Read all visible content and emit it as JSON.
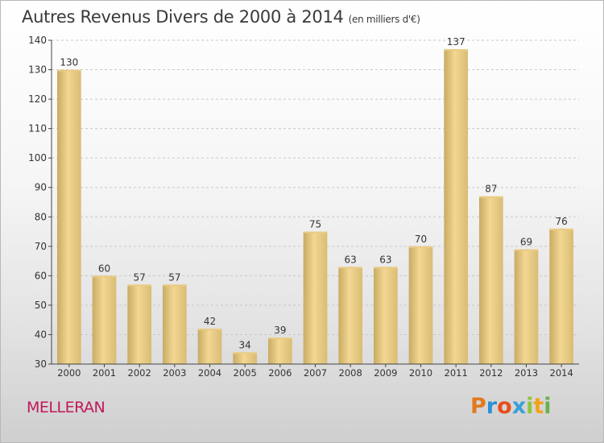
{
  "header": {
    "title": "Autres Revenus Divers de 2000 à 2014",
    "subtitle": "(en milliers d'€)"
  },
  "footer": {
    "town": "MELLERAN",
    "logo": [
      "P",
      "r",
      "o",
      "x",
      "i",
      "t",
      "i"
    ]
  },
  "chart_data": {
    "type": "bar",
    "title": "Autres Revenus Divers de 2000 à 2014",
    "subtitle": "(en milliers d'€)",
    "xlabel": "",
    "ylabel": "",
    "ylim": [
      30,
      140
    ],
    "yticks": [
      30,
      40,
      50,
      60,
      70,
      80,
      90,
      100,
      110,
      120,
      130,
      140
    ],
    "grid": "horizontal-dashed",
    "categories": [
      "2000",
      "2001",
      "2002",
      "2003",
      "2004",
      "2005",
      "2006",
      "2007",
      "2008",
      "2009",
      "2010",
      "2011",
      "2012",
      "2013",
      "2014"
    ],
    "values": [
      130,
      60,
      57,
      57,
      42,
      34,
      39,
      75,
      63,
      63,
      70,
      137,
      87,
      69,
      76
    ],
    "colors": {
      "bar_light": "#f7e0a0",
      "bar_dark": "#c8ab64",
      "axis": "#444444",
      "grid": "#c8c8c8"
    }
  }
}
